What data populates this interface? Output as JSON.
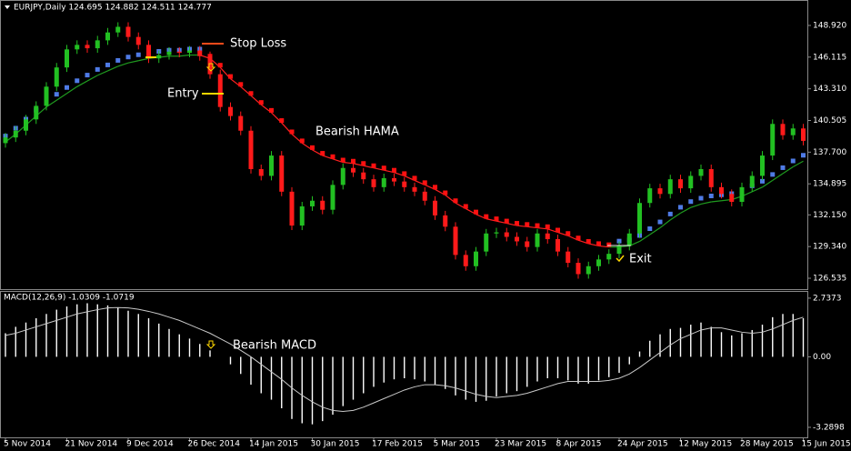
{
  "chart_data": [
    {
      "type": "candlestick",
      "title": "EURJPY,Daily  124.695 124.882 124.511 124.777",
      "categories": [
        "5 Nov 2014",
        null,
        null,
        null,
        null,
        null,
        "21 Nov 2014",
        null,
        null,
        null,
        null,
        null,
        "9 Dec 2014",
        null,
        null,
        null,
        null,
        null,
        "26 Dec 2014",
        null,
        null,
        null,
        null,
        null,
        "14 Jan 2015",
        null,
        null,
        null,
        null,
        null,
        "30 Jan 2015",
        null,
        null,
        null,
        null,
        null,
        "17 Feb 2015",
        null,
        null,
        null,
        null,
        null,
        "5 Mar 2015",
        null,
        null,
        null,
        null,
        null,
        "23 Mar 2015",
        null,
        null,
        null,
        null,
        null,
        "8 Apr 2015",
        null,
        null,
        null,
        null,
        null,
        "24 Apr 2015",
        null,
        null,
        null,
        null,
        null,
        "12 May 2015",
        null,
        null,
        null,
        null,
        null,
        "28 May 2015",
        null,
        null,
        null,
        null,
        null,
        "15 Jun 2015"
      ],
      "open": [
        138.5,
        139.0,
        139.6,
        140.6,
        141.8,
        143.5,
        145.2,
        146.8,
        147.2,
        146.9,
        147.6,
        148.3,
        148.8,
        147.9,
        147.2,
        146.0,
        146.3,
        146.6,
        146.5,
        146.7,
        146.2,
        144.6,
        141.7,
        140.9,
        139.6,
        136.2,
        135.6,
        137.4,
        134.2,
        131.2,
        132.9,
        133.4,
        132.6,
        134.8,
        136.3,
        135.9,
        135.3,
        134.6,
        135.4,
        135.1,
        134.6,
        134.2,
        133.4,
        132.1,
        131.1,
        128.6,
        127.6,
        128.9,
        130.5,
        130.6,
        130.2,
        129.8,
        129.3,
        130.5,
        130.0,
        128.9,
        127.9,
        126.9,
        127.6,
        128.2,
        128.7,
        129.4,
        130.5,
        133.2,
        134.5,
        134.0,
        135.3,
        134.5,
        135.6,
        136.2,
        134.6,
        134.0,
        133.3,
        134.6,
        135.6,
        137.4,
        140.2,
        139.2,
        139.8
      ],
      "high": [
        139.4,
        140.0,
        141.0,
        142.2,
        143.9,
        145.6,
        147.2,
        147.6,
        147.6,
        148.0,
        148.7,
        149.2,
        149.2,
        148.3,
        147.6,
        146.7,
        147.0,
        147.0,
        147.1,
        147.1,
        146.6,
        145.0,
        142.1,
        141.3,
        140.0,
        136.6,
        137.8,
        137.8,
        134.6,
        133.3,
        133.8,
        133.8,
        135.2,
        136.7,
        136.7,
        136.3,
        135.7,
        135.8,
        135.8,
        135.5,
        135.0,
        134.6,
        133.8,
        132.5,
        131.5,
        129.0,
        129.3,
        130.9,
        131.0,
        131.0,
        130.6,
        130.2,
        130.9,
        130.9,
        130.4,
        129.3,
        128.3,
        128.0,
        128.6,
        129.1,
        129.8,
        130.9,
        133.6,
        134.9,
        134.9,
        135.7,
        135.7,
        136.0,
        136.6,
        136.6,
        135.0,
        134.4,
        135.0,
        136.0,
        137.8,
        140.6,
        140.6,
        140.2,
        140.2
      ],
      "low": [
        138.1,
        138.6,
        139.2,
        140.2,
        141.4,
        143.1,
        144.8,
        146.4,
        146.5,
        146.5,
        147.2,
        147.9,
        147.5,
        146.8,
        145.6,
        145.6,
        145.9,
        146.1,
        146.1,
        145.8,
        144.2,
        141.3,
        140.5,
        139.2,
        135.8,
        135.2,
        135.2,
        133.8,
        130.8,
        130.8,
        132.5,
        132.2,
        132.2,
        134.4,
        135.5,
        134.9,
        134.2,
        134.2,
        134.7,
        134.2,
        133.8,
        133.0,
        131.7,
        130.7,
        128.2,
        127.2,
        127.2,
        128.5,
        130.1,
        129.8,
        129.4,
        128.9,
        128.9,
        129.6,
        128.5,
        127.5,
        126.5,
        126.5,
        127.2,
        127.8,
        128.3,
        129.0,
        130.1,
        132.8,
        133.6,
        133.6,
        134.1,
        134.1,
        135.2,
        134.2,
        133.6,
        132.9,
        132.9,
        134.2,
        135.2,
        137.0,
        138.8,
        138.8,
        138.3
      ],
      "close": [
        139.0,
        139.6,
        140.6,
        141.8,
        143.5,
        145.2,
        146.8,
        147.2,
        146.9,
        147.6,
        148.3,
        148.8,
        147.9,
        147.2,
        146.0,
        146.3,
        146.6,
        146.5,
        146.7,
        146.2,
        144.6,
        141.7,
        140.9,
        139.6,
        136.2,
        135.6,
        137.4,
        134.2,
        131.2,
        132.9,
        133.4,
        132.6,
        134.8,
        136.3,
        135.9,
        135.3,
        134.6,
        135.4,
        135.1,
        134.6,
        134.2,
        133.4,
        132.1,
        131.1,
        128.6,
        127.6,
        128.9,
        130.5,
        130.6,
        130.2,
        129.8,
        129.3,
        130.5,
        130.0,
        128.9,
        127.9,
        126.9,
        127.6,
        128.2,
        128.7,
        129.4,
        130.5,
        133.2,
        134.5,
        134.0,
        135.3,
        134.5,
        135.6,
        136.2,
        134.6,
        134.0,
        133.3,
        134.6,
        135.6,
        137.4,
        140.2,
        139.2,
        139.8,
        138.7
      ],
      "ma": [
        138.6,
        139.3,
        140.1,
        140.9,
        141.7,
        142.3,
        142.9,
        143.5,
        144.0,
        144.5,
        144.9,
        145.3,
        145.6,
        145.8,
        146.0,
        146.1,
        146.2,
        146.2,
        146.3,
        146.3,
        146.0,
        145.2,
        144.2,
        143.5,
        142.7,
        141.9,
        141.2,
        140.3,
        139.3,
        138.5,
        137.9,
        137.4,
        137.1,
        136.8,
        136.7,
        136.5,
        136.3,
        136.1,
        135.9,
        135.6,
        135.2,
        134.8,
        134.4,
        133.9,
        133.2,
        132.7,
        132.2,
        131.8,
        131.6,
        131.4,
        131.2,
        131.1,
        131.0,
        130.9,
        130.6,
        130.3,
        129.9,
        129.6,
        129.4,
        129.3,
        129.3,
        129.4,
        129.8,
        130.4,
        131.0,
        131.7,
        132.3,
        132.8,
        133.1,
        133.3,
        133.4,
        133.5,
        133.8,
        134.2,
        134.6,
        135.2,
        135.8,
        136.4,
        136.9
      ],
      "up_color": "#22c022",
      "down_color": "#ff1a1a",
      "hama_up_color": "#4f7be6",
      "hama_down_color": "#ff1010",
      "ma_up_color": "#1f9a1f",
      "ma_down_color": "#ff2020",
      "ylim": [
        125.57,
        150.77
      ],
      "yticks": [
        {
          "value": 148.92,
          "label": "148.920"
        },
        {
          "value": 146.115,
          "label": "146.115"
        },
        {
          "value": 143.31,
          "label": "143.310"
        },
        {
          "value": 140.505,
          "label": "140.505"
        },
        {
          "value": 137.7,
          "label": "137.700"
        },
        {
          "value": 134.895,
          "label": "134.895"
        },
        {
          "value": 132.15,
          "label": "132.150"
        },
        {
          "value": 129.34,
          "label": "129.340"
        },
        {
          "value": 126.535,
          "label": "126.535"
        }
      ],
      "annotations": [
        {
          "text": "Stop Loss",
          "color": "#ff4a1a"
        },
        {
          "text": "Entry",
          "color": "#ffd700"
        },
        {
          "text": "Bearish HAMA",
          "color": "#ffd700"
        },
        {
          "text": "Exit",
          "color": "#3ccf3c"
        }
      ]
    },
    {
      "type": "macd",
      "title": "MACD(12,26,9) -1.0309 -1.0719",
      "values": [
        1.1,
        1.4,
        1.6,
        1.8,
        2.0,
        2.2,
        2.35,
        2.45,
        2.5,
        2.45,
        2.4,
        2.3,
        2.15,
        2.0,
        1.8,
        1.55,
        1.3,
        1.05,
        0.85,
        0.6,
        0.3,
        0.0,
        -0.35,
        -0.8,
        -1.3,
        -1.7,
        -2.0,
        -2.4,
        -2.9,
        -3.1,
        -3.15,
        -3.0,
        -2.7,
        -2.3,
        -2.0,
        -1.7,
        -1.4,
        -1.2,
        -1.05,
        -1.0,
        -1.05,
        -1.15,
        -1.3,
        -1.5,
        -1.8,
        -2.0,
        -2.1,
        -2.05,
        -1.85,
        -1.7,
        -1.6,
        -1.4,
        -1.15,
        -1.0,
        -1.0,
        -1.1,
        -1.25,
        -1.25,
        -1.1,
        -0.95,
        -0.75,
        -0.35,
        0.25,
        0.75,
        1.05,
        1.3,
        1.35,
        1.5,
        1.6,
        1.4,
        1.15,
        1.0,
        1.1,
        1.25,
        1.5,
        1.85,
        2.0,
        2.0,
        1.8
      ],
      "signal": [
        1.0,
        1.1,
        1.25,
        1.4,
        1.55,
        1.7,
        1.85,
        2.0,
        2.1,
        2.2,
        2.28,
        2.3,
        2.28,
        2.22,
        2.12,
        2.0,
        1.85,
        1.7,
        1.5,
        1.3,
        1.1,
        0.85,
        0.6,
        0.3,
        0.0,
        -0.35,
        -0.7,
        -1.05,
        -1.45,
        -1.8,
        -2.1,
        -2.35,
        -2.5,
        -2.55,
        -2.5,
        -2.35,
        -2.15,
        -1.95,
        -1.75,
        -1.55,
        -1.4,
        -1.3,
        -1.3,
        -1.35,
        -1.45,
        -1.6,
        -1.75,
        -1.85,
        -1.9,
        -1.85,
        -1.8,
        -1.7,
        -1.55,
        -1.4,
        -1.25,
        -1.15,
        -1.15,
        -1.15,
        -1.15,
        -1.1,
        -1.0,
        -0.8,
        -0.5,
        -0.15,
        0.2,
        0.55,
        0.85,
        1.05,
        1.25,
        1.35,
        1.35,
        1.25,
        1.15,
        1.1,
        1.15,
        1.3,
        1.5,
        1.7,
        1.85
      ],
      "color": "#ffffff",
      "signal_color": "#c8c8c8",
      "ylim": [
        -3.8,
        3.03
      ],
      "yticks": [
        2.7373,
        {
          "value": 0,
          "label": "0.00"
        },
        -3.2898
      ],
      "annotations": [
        {
          "text": "Bearish MACD",
          "color": "#ffd700"
        }
      ]
    }
  ]
}
